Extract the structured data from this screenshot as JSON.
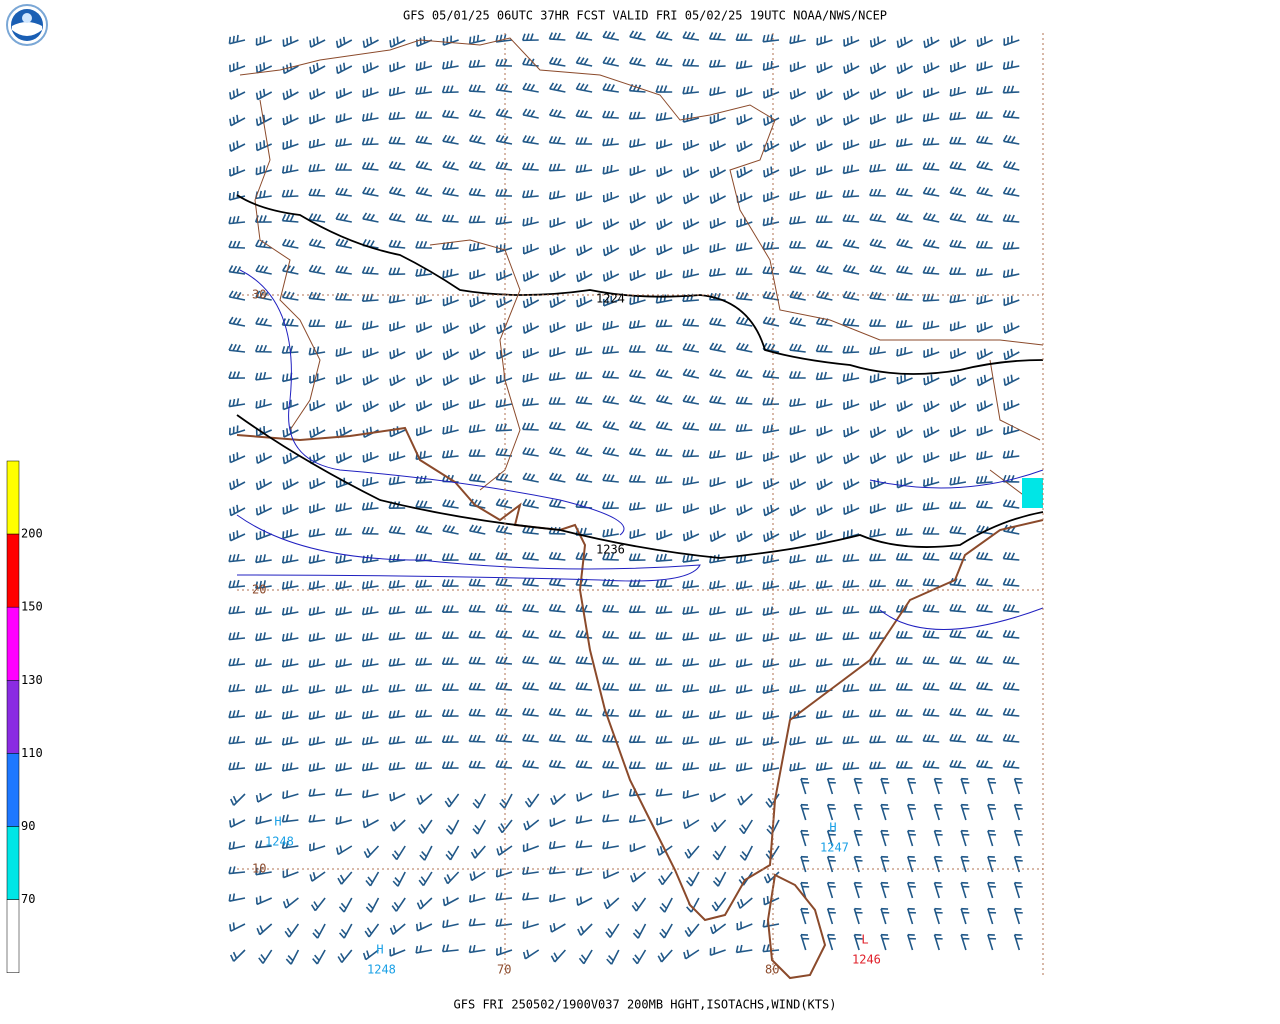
{
  "header": {
    "title": "GFS 05/01/25 06UTC 37HR FCST VALID FRI 05/02/25 19UTC NOAA/NWS/NCEP"
  },
  "footer": {
    "text": "GFS FRI 250502/1900V037 200MB HGHT,ISOTACHS,WIND(KTS)"
  },
  "legend": {
    "labels": [
      "200",
      "150",
      "130",
      "110",
      "90",
      "70"
    ],
    "colors": [
      "#ffff00",
      "#ff0000",
      "#ff00ff",
      "#8a2be2",
      "#1e78ff",
      "#00e6e6",
      "#ffffff"
    ]
  },
  "grid": {
    "lat_labels": [
      "30",
      "20",
      "10"
    ],
    "lon_labels": [
      "70",
      "80"
    ]
  },
  "contours": {
    "labels": [
      "1224",
      "1236"
    ]
  },
  "centers": [
    {
      "symbol": "H",
      "value": "1248"
    },
    {
      "symbol": "H",
      "value": "1247"
    },
    {
      "symbol": "H",
      "value": "1248"
    },
    {
      "symbol": "L",
      "value": "1246"
    }
  ]
}
